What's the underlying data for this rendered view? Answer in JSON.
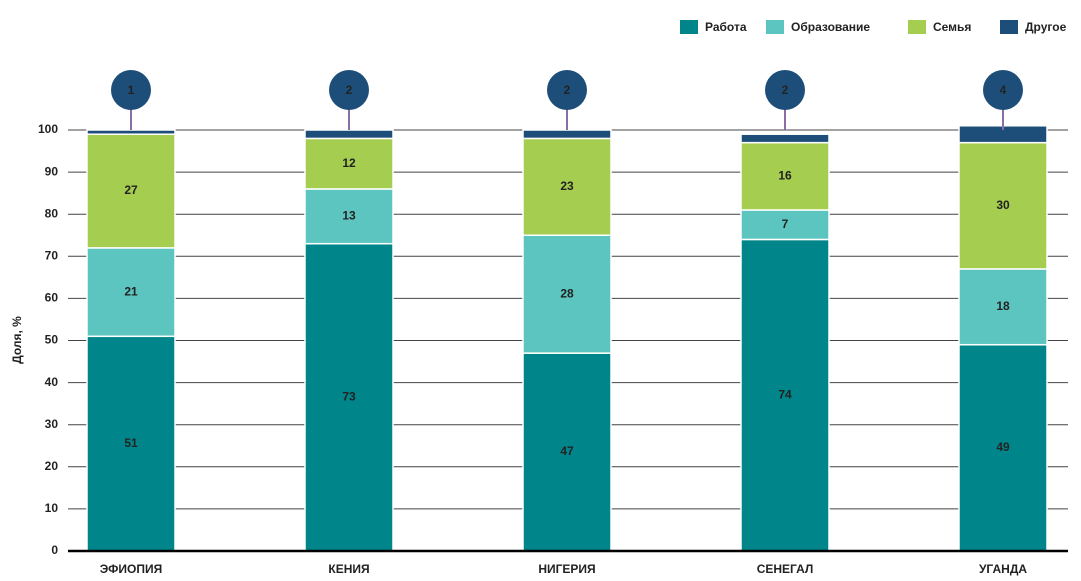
{
  "chart_data": {
    "type": "stacked_bar",
    "y_label": "Доля, %",
    "categories": [
      "ЭФИОПИЯ",
      "КЕНИЯ",
      "НИГЕРИЯ",
      "СЕНЕГАЛ",
      "УГАНДА"
    ],
    "series": [
      {
        "name": "Работа",
        "color": "#00868a",
        "values": [
          51,
          73,
          47,
          74,
          49
        ]
      },
      {
        "name": "Образование",
        "color": "#5cc5bf",
        "values": [
          21,
          13,
          28,
          7,
          18
        ]
      },
      {
        "name": "Семья",
        "color": "#a5cd4f",
        "values": [
          27,
          12,
          23,
          16,
          30
        ]
      },
      {
        "name": "Другое",
        "color": "#1d4e79",
        "values": [
          1,
          2,
          2,
          2,
          4
        ]
      }
    ],
    "ylim": [
      0,
      100
    ],
    "yticks": [
      0,
      10,
      20,
      30,
      40,
      50,
      60,
      70,
      80,
      90,
      100
    ],
    "grid": true,
    "legend": "top-right"
  }
}
